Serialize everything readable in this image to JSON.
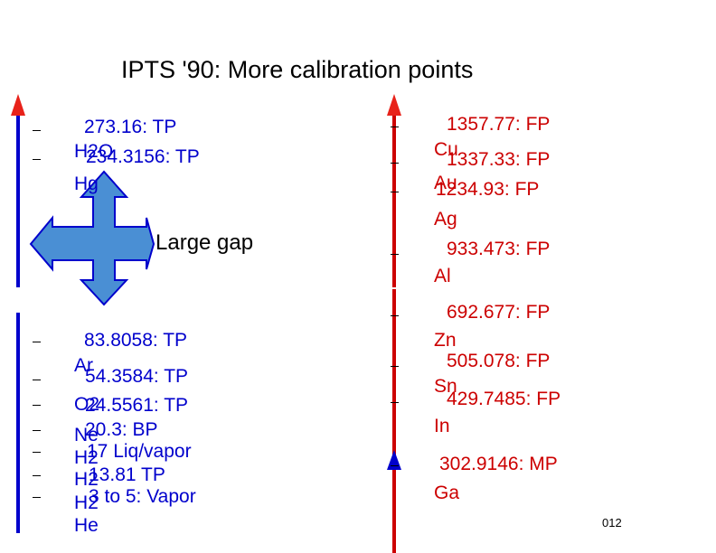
{
  "title": "IPTS '90:  More calibration points",
  "left_column": [
    {
      "value": "273.16:   TP",
      "substance": "H2O"
    },
    {
      "value": "234.3156: TP",
      "substance": "Hg"
    },
    {
      "value": "83.8058:    TP",
      "substance": "Ar"
    },
    {
      "value": "54.3584:  TP",
      "substance": "O2"
    },
    {
      "value": "24.5561:  TP",
      "substance": "Ne"
    },
    {
      "value": "20.3:          BP",
      "substance": "H2"
    },
    {
      "value": "17  Liq/vapor",
      "substance": "H2"
    },
    {
      "value": "13.81          TP",
      "substance": "H2"
    },
    {
      "value": "3 to 5: Vapor",
      "substance": "He"
    }
  ],
  "gap_label": "Large gap",
  "right_column": [
    {
      "value": "1357.77:  FP",
      "substance": "Cu"
    },
    {
      "value": "1337.33:  FP",
      "substance": "Au"
    },
    {
      "value": "1234.93:    FP",
      "substance": "Ag"
    },
    {
      "value": "933.473:  FP",
      "substance": "Al"
    },
    {
      "value": "692.677:  FP",
      "substance": "Zn"
    },
    {
      "value": "505.078:  FP",
      "substance": "Sn"
    },
    {
      "value": "429.7485:  FP",
      "substance": "In"
    },
    {
      "value": "302.9146: MP",
      "substance": "Ga"
    }
  ],
  "footer": "012",
  "colors": {
    "left_axis": "#0000cc",
    "right_axis": "#cc0000",
    "arrow_fill": "#4a8fd4",
    "arrow_stroke": "#0000cc"
  }
}
